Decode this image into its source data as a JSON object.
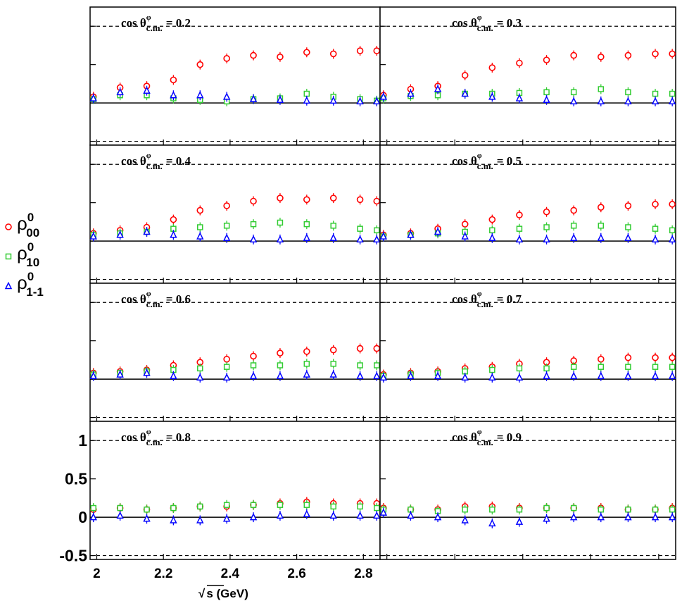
{
  "figure": {
    "xlabel_root": "√",
    "xlabel_text": "s (GeV)",
    "x_ticks": [
      "2",
      "2.2",
      "2.4",
      "2.6",
      "2.8"
    ],
    "y_ticks": [
      "1",
      "0.5",
      "0",
      "-0.5"
    ],
    "legend": [
      {
        "symbol": "ρ",
        "sup": "0",
        "sub": "00",
        "marker": "circle",
        "color": "#ff0000"
      },
      {
        "symbol": "ρ",
        "sup": "0",
        "sub": "10",
        "marker": "square",
        "color": "#33cc33"
      },
      {
        "symbol": "ρ",
        "sup": "0",
        "sub": "1-1",
        "marker": "triangle",
        "color": "#0000ff"
      }
    ]
  },
  "chart_data": {
    "type": "scatter",
    "x_range": [
      1.98,
      2.85
    ],
    "ylim": [
      -0.55,
      1.25
    ],
    "reference_lines": {
      "solid": [
        0
      ],
      "dashed": [
        1,
        -0.5
      ]
    },
    "grid": false,
    "colors": {
      "rho00": "#ff0000",
      "rho10": "#33cc33",
      "rho1m1": "#0000ff"
    },
    "x": [
      1.99,
      2.07,
      2.15,
      2.23,
      2.31,
      2.39,
      2.47,
      2.55,
      2.63,
      2.71,
      2.79,
      2.84
    ],
    "panels": [
      {
        "title_prefix": "cos θ",
        "title_sup": "φ",
        "title_sub": "c.m.",
        "title_value": "= 0.2",
        "series": [
          {
            "key": "rho00",
            "values": [
              0.08,
              0.2,
              0.22,
              0.3,
              0.5,
              0.58,
              0.62,
              0.6,
              0.66,
              0.64,
              0.68,
              0.68
            ]
          },
          {
            "key": "rho10",
            "values": [
              0.05,
              0.1,
              0.1,
              0.06,
              0.04,
              0.02,
              0.05,
              0.06,
              0.12,
              0.08,
              0.05,
              0.03
            ]
          },
          {
            "key": "rho1m1",
            "values": [
              0.06,
              0.14,
              0.16,
              0.1,
              0.1,
              0.08,
              0.05,
              0.04,
              0.03,
              0.03,
              0.02,
              0.02
            ]
          }
        ]
      },
      {
        "title_prefix": "cos θ",
        "title_sup": "φ",
        "title_sub": "c.m.",
        "title_value": "= 0.3",
        "series": [
          {
            "key": "rho00",
            "values": [
              0.1,
              0.18,
              0.22,
              0.36,
              0.46,
              0.52,
              0.56,
              0.62,
              0.6,
              0.62,
              0.64,
              0.64
            ]
          },
          {
            "key": "rho10",
            "values": [
              0.06,
              0.09,
              0.1,
              0.12,
              0.12,
              0.13,
              0.14,
              0.14,
              0.18,
              0.14,
              0.12,
              0.12
            ]
          },
          {
            "key": "rho1m1",
            "values": [
              0.08,
              0.12,
              0.18,
              0.12,
              0.08,
              0.06,
              0.04,
              0.02,
              0.02,
              0.02,
              0.02,
              0.02
            ]
          }
        ]
      },
      {
        "title_prefix": "cos θ",
        "title_sup": "φ",
        "title_sub": "c.m.",
        "title_value": "= 0.4",
        "series": [
          {
            "key": "rho00",
            "values": [
              0.1,
              0.14,
              0.18,
              0.28,
              0.4,
              0.46,
              0.52,
              0.56,
              0.54,
              0.56,
              0.54,
              0.52
            ]
          },
          {
            "key": "rho10",
            "values": [
              0.08,
              0.1,
              0.12,
              0.16,
              0.18,
              0.2,
              0.22,
              0.24,
              0.22,
              0.2,
              0.16,
              0.14
            ]
          },
          {
            "key": "rho1m1",
            "values": [
              0.06,
              0.08,
              0.12,
              0.08,
              0.06,
              0.04,
              0.02,
              0.02,
              0.04,
              0.04,
              0.02,
              0.02
            ]
          }
        ]
      },
      {
        "title_prefix": "cos θ",
        "title_sup": "φ",
        "title_sub": "c.m.",
        "title_value": "= 0.5",
        "series": [
          {
            "key": "rho00",
            "values": [
              0.08,
              0.1,
              0.16,
              0.22,
              0.28,
              0.34,
              0.38,
              0.4,
              0.44,
              0.46,
              0.48,
              0.48
            ]
          },
          {
            "key": "rho10",
            "values": [
              0.06,
              0.08,
              0.1,
              0.12,
              0.14,
              0.16,
              0.18,
              0.2,
              0.2,
              0.18,
              0.16,
              0.14
            ]
          },
          {
            "key": "rho1m1",
            "values": [
              0.06,
              0.08,
              0.12,
              0.06,
              0.04,
              0.02,
              0.02,
              0.04,
              0.04,
              0.04,
              0.02,
              0.02
            ]
          }
        ]
      },
      {
        "title_prefix": "cos θ",
        "title_sup": "φ",
        "title_sub": "c.m.",
        "title_value": "= 0.6",
        "series": [
          {
            "key": "rho00",
            "values": [
              0.08,
              0.1,
              0.12,
              0.18,
              0.22,
              0.26,
              0.3,
              0.34,
              0.36,
              0.38,
              0.4,
              0.4
            ]
          },
          {
            "key": "rho10",
            "values": [
              0.06,
              0.08,
              0.1,
              0.12,
              0.14,
              0.16,
              0.18,
              0.18,
              0.2,
              0.2,
              0.18,
              0.18
            ]
          },
          {
            "key": "rho1m1",
            "values": [
              0.04,
              0.06,
              0.08,
              0.04,
              0.02,
              0.02,
              0.04,
              0.04,
              0.06,
              0.06,
              0.04,
              0.04
            ]
          }
        ]
      },
      {
        "title_prefix": "cos θ",
        "title_sup": "φ",
        "title_sub": "c.m.",
        "title_value": "= 0.7",
        "series": [
          {
            "key": "rho00",
            "values": [
              0.06,
              0.08,
              0.1,
              0.14,
              0.16,
              0.2,
              0.22,
              0.24,
              0.26,
              0.28,
              0.28,
              0.28
            ]
          },
          {
            "key": "rho10",
            "values": [
              0.04,
              0.06,
              0.08,
              0.1,
              0.12,
              0.14,
              0.14,
              0.16,
              0.16,
              0.16,
              0.16,
              0.16
            ]
          },
          {
            "key": "rho1m1",
            "values": [
              0.02,
              0.04,
              0.04,
              0.02,
              0.02,
              0.02,
              0.04,
              0.04,
              0.04,
              0.04,
              0.04,
              0.04
            ]
          }
        ]
      },
      {
        "title_prefix": "cos θ",
        "title_sup": "φ",
        "title_sub": "c.m.",
        "title_value": "= 0.8",
        "series": [
          {
            "key": "rho00",
            "values": [
              0.1,
              0.12,
              0.1,
              0.12,
              0.14,
              0.14,
              0.16,
              0.18,
              0.2,
              0.18,
              0.18,
              0.18
            ]
          },
          {
            "key": "rho10",
            "values": [
              0.12,
              0.12,
              0.1,
              0.12,
              0.14,
              0.16,
              0.16,
              0.16,
              0.16,
              0.14,
              0.14,
              0.12
            ]
          },
          {
            "key": "rho1m1",
            "values": [
              0.0,
              0.02,
              -0.02,
              -0.04,
              -0.04,
              -0.02,
              0.0,
              0.02,
              0.04,
              0.02,
              0.02,
              0.02
            ]
          }
        ]
      },
      {
        "title_prefix": "cos θ",
        "title_sup": "φ",
        "title_sub": "c.m.",
        "title_value": "= 0.9",
        "series": [
          {
            "key": "rho00",
            "values": [
              0.12,
              0.1,
              0.1,
              0.14,
              0.14,
              0.12,
              0.12,
              0.12,
              0.12,
              0.1,
              0.1,
              0.12
            ]
          },
          {
            "key": "rho10",
            "values": [
              0.1,
              0.1,
              0.08,
              0.1,
              0.1,
              0.1,
              0.12,
              0.12,
              0.1,
              0.1,
              0.1,
              0.1
            ]
          },
          {
            "key": "rho1m1",
            "values": [
              0.06,
              0.02,
              0.0,
              -0.04,
              -0.08,
              -0.06,
              -0.02,
              0.0,
              0.0,
              0.0,
              0.0,
              0.0
            ]
          }
        ]
      }
    ]
  }
}
